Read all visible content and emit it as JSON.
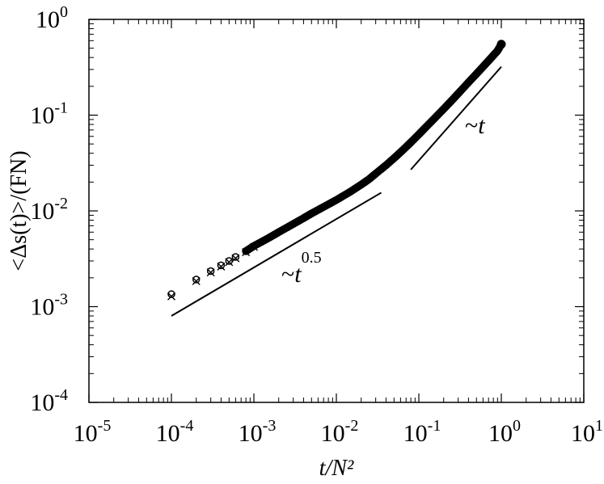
{
  "chart_data": {
    "type": "scatter",
    "scale": {
      "x": "log",
      "y": "log"
    },
    "xlim": [
      1e-05,
      10
    ],
    "ylim": [
      0.0001,
      1
    ],
    "grid": false,
    "xlabel": "t/N²",
    "ylabel": "<Δs(t)>/(FN)",
    "x_ticks": [
      {
        "value": 1e-05,
        "base": "10",
        "exp": "-5"
      },
      {
        "value": 0.0001,
        "base": "10",
        "exp": "-4"
      },
      {
        "value": 0.001,
        "base": "10",
        "exp": "-3"
      },
      {
        "value": 0.01,
        "base": "10",
        "exp": "-2"
      },
      {
        "value": 0.1,
        "base": "10",
        "exp": "-1"
      },
      {
        "value": 1,
        "base": "10",
        "exp": "0"
      },
      {
        "value": 10,
        "base": "10",
        "exp": "1"
      }
    ],
    "y_ticks": [
      {
        "value": 0.0001,
        "base": "10",
        "exp": "-4"
      },
      {
        "value": 0.001,
        "base": "10",
        "exp": "-3"
      },
      {
        "value": 0.01,
        "base": "10",
        "exp": "-2"
      },
      {
        "value": 0.1,
        "base": "10",
        "exp": "-1"
      },
      {
        "value": 1,
        "base": "10",
        "exp": "0"
      }
    ],
    "series": [
      {
        "marker": "circle",
        "points": [
          [
            0.0001,
            0.00135
          ],
          [
            0.0002,
            0.00192
          ],
          [
            0.0003,
            0.00235
          ],
          [
            0.0004,
            0.0027
          ],
          [
            0.0005,
            0.003
          ],
          [
            0.0006,
            0.0033
          ],
          [
            0.0008,
            0.0038
          ],
          [
            0.001,
            0.0043
          ],
          [
            0.0015,
            0.0052
          ],
          [
            0.002,
            0.006
          ],
          [
            0.003,
            0.0073
          ],
          [
            0.004,
            0.0084
          ],
          [
            0.005,
            0.0094
          ],
          [
            0.007,
            0.011
          ],
          [
            0.01,
            0.013
          ],
          [
            0.015,
            0.016
          ],
          [
            0.02,
            0.0188
          ],
          [
            0.025,
            0.0215
          ],
          [
            0.03,
            0.0245
          ],
          [
            0.04,
            0.03
          ],
          [
            0.05,
            0.0355
          ],
          [
            0.06,
            0.041
          ],
          [
            0.07,
            0.0465
          ],
          [
            0.08,
            0.052
          ],
          [
            0.1,
            0.063
          ],
          [
            0.12,
            0.074
          ],
          [
            0.15,
            0.09
          ],
          [
            0.2,
            0.116
          ],
          [
            0.25,
            0.142
          ],
          [
            0.3,
            0.168
          ],
          [
            0.4,
            0.22
          ],
          [
            0.5,
            0.27
          ],
          [
            0.6,
            0.32
          ],
          [
            0.7,
            0.37
          ],
          [
            0.8,
            0.42
          ],
          [
            0.9,
            0.47
          ],
          [
            1.0,
            0.55
          ]
        ]
      },
      {
        "marker": "cross",
        "points": [
          [
            0.0001,
            0.00128
          ],
          [
            0.0002,
            0.00185
          ],
          [
            0.0003,
            0.00228
          ],
          [
            0.0004,
            0.00262
          ],
          [
            0.0005,
            0.00292
          ],
          [
            0.0006,
            0.0032
          ],
          [
            0.0008,
            0.0037
          ],
          [
            0.001,
            0.0042
          ]
        ]
      }
    ],
    "reference_lines": [
      {
        "label_base": "~t",
        "label_exp": "0.5",
        "from": [
          0.0001,
          0.0008
        ],
        "to": [
          0.035,
          0.0155
        ]
      },
      {
        "label_base": "~t",
        "label_exp": "",
        "from": [
          0.08,
          0.027
        ],
        "to": [
          1.0,
          0.32
        ]
      }
    ]
  }
}
